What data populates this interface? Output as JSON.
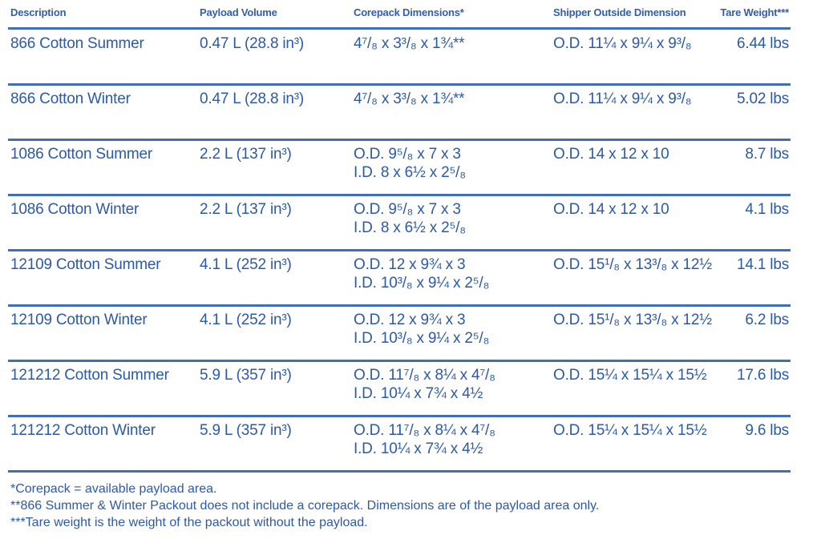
{
  "table": {
    "headers": [
      "Description",
      "Payload Volume",
      "Corepack Dimensions*",
      "Shipper Outside Dimension",
      "Tare Weight***"
    ],
    "rows": [
      {
        "description": "866 Cotton Summer",
        "payload": "0.47 L (28.8 in³)",
        "corepack": [
          "4⁷/₈ x 3³/₈ x 1¾**"
        ],
        "shipper": "O.D. 11¼ x 9¼ x 9³/₈",
        "tare": "6.44 lbs"
      },
      {
        "description": "866 Cotton Winter",
        "payload": "0.47 L (28.8 in³)",
        "corepack": [
          "4⁷/₈ x 3³/₈ x 1¾**"
        ],
        "shipper": "O.D. 11¼ x 9¼ x 9³/₈",
        "tare": "5.02 lbs"
      },
      {
        "description": "1086 Cotton Summer",
        "payload": "2.2 L (137 in³)",
        "corepack": [
          "O.D. 9⁵/₈ x 7 x 3",
          "I.D.  8 x 6½ x 2⁵/₈"
        ],
        "shipper": "O.D. 14 x 12 x 10",
        "tare": "8.7 lbs"
      },
      {
        "description": "1086 Cotton Winter",
        "payload": "2.2 L (137 in³)",
        "corepack": [
          "O.D. 9⁵/₈ x 7 x 3",
          "I.D.  8 x 6½ x 2⁵/₈"
        ],
        "shipper": "O.D. 14 x 12 x 10",
        "tare": "4.1 lbs"
      },
      {
        "description": "12109 Cotton Summer",
        "payload": "4.1 L (252 in³)",
        "corepack": [
          "O.D. 12 x 9¾ x 3",
          "I.D.  10³/₈ x 9¼ x 2⁵/₈"
        ],
        "shipper": "O.D. 15¹/₈ x 13³/₈ x 12½",
        "tare": "14.1 lbs"
      },
      {
        "description": "12109 Cotton Winter",
        "payload": "4.1 L (252 in³)",
        "corepack": [
          "O.D. 12 x 9¾ x 3",
          "I.D.  10³/₈ x 9¼ x 2⁵/₈"
        ],
        "shipper": "O.D. 15¹/₈ x 13³/₈ x 12½",
        "tare": "6.2 lbs"
      },
      {
        "description": "121212 Cotton Summer",
        "payload": "5.9 L (357 in³)",
        "corepack": [
          "O.D. 11⁷/₈ x 8¼ x 4⁷/₈",
          "I.D.  10¼ x 7¾ x 4½"
        ],
        "shipper": "O.D. 15¼ x 15¼ x 15½",
        "tare": "17.6 lbs"
      },
      {
        "description": "121212 Cotton Winter",
        "payload": "5.9 L (357 in³)",
        "corepack": [
          "O.D. 11⁷/₈ x 8¼ x 4⁷/₈",
          "I.D.  10¼ x 7¾ x 4½"
        ],
        "shipper": "O.D. 15¼ x 15¼ x 15½",
        "tare": "9.6 lbs"
      }
    ]
  },
  "footnotes": [
    "*Corepack = available payload area.",
    "**866 Summer & Winter Packout does not include a corepack. Dimensions are of the payload area only.",
    "***Tare weight is the weight of the packout without the payload."
  ],
  "colors": {
    "text": "#2b5aa8",
    "rule": "#3f6fb9",
    "background": "#ffffff"
  }
}
